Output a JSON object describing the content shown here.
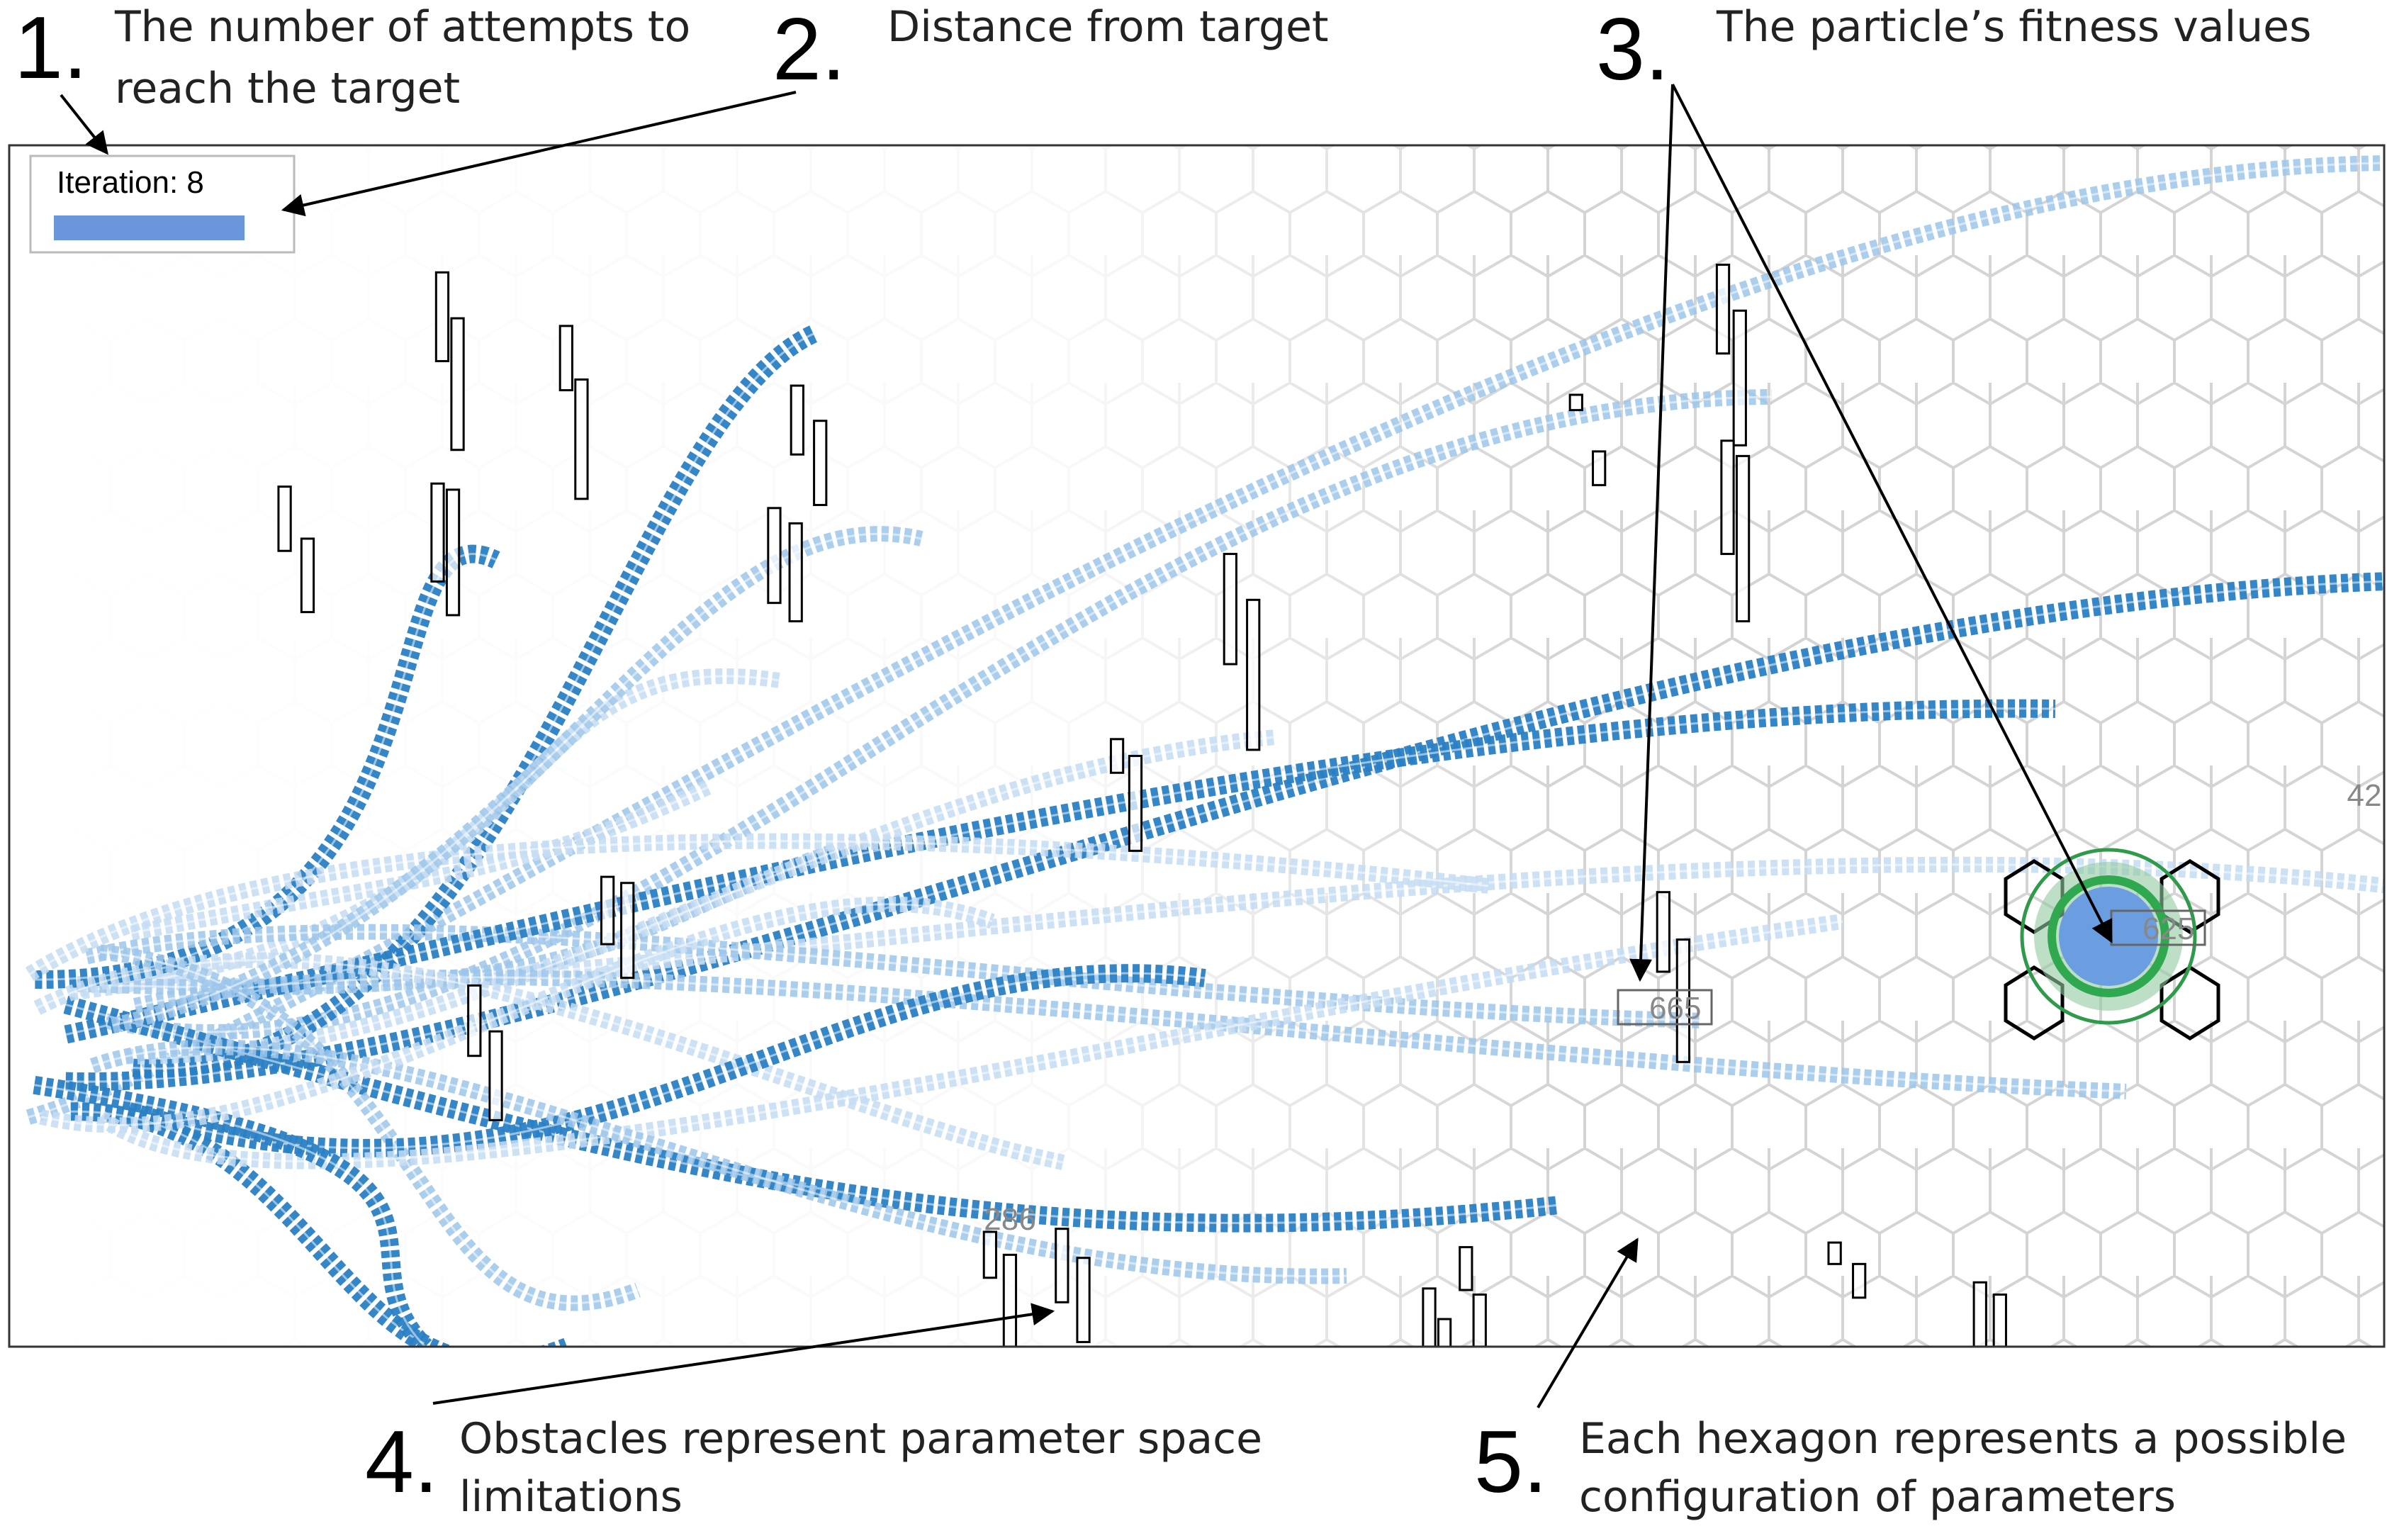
{
  "annotations": [
    {
      "number": "1.",
      "lines": [
        "The number of attempts to",
        "reach the target"
      ]
    },
    {
      "number": "2.",
      "lines": [
        "Distance from target"
      ]
    },
    {
      "number": "3.",
      "lines": [
        "The particle’s fitness values"
      ]
    },
    {
      "number": "4.",
      "lines": [
        "Obstacles represent parameter space",
        "limitations"
      ]
    },
    {
      "number": "5.",
      "lines": [
        "Each hexagon represents a possible",
        "configuration of parameters"
      ]
    }
  ],
  "iteration_label": "Iteration: 8",
  "fitness_labels": [
    "286",
    "665",
    "625",
    "42"
  ]
}
